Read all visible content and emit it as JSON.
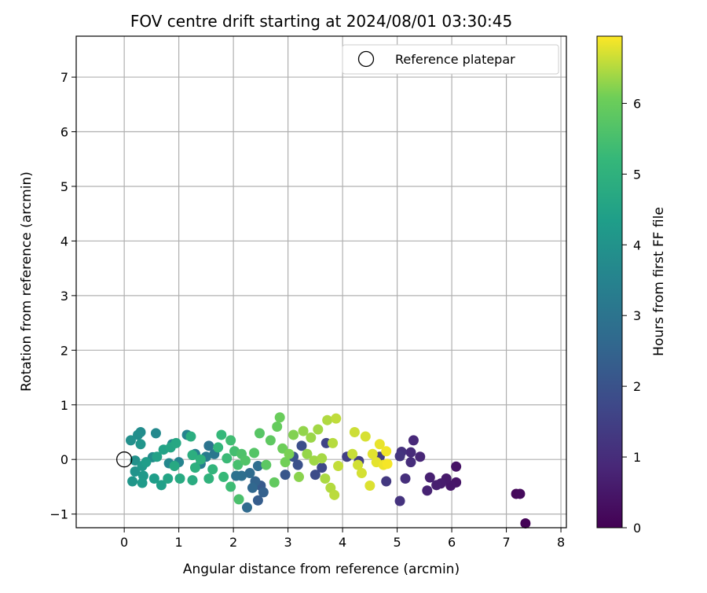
{
  "chart_data": {
    "type": "scatter",
    "title": "FOV centre drift starting at 2024/08/01 03:30:45",
    "xlabel": "Angular distance from reference (arcmin)",
    "ylabel": "Rotation from reference (arcmin)",
    "xlim": [
      -0.88,
      8.1
    ],
    "ylim": [
      -1.25,
      7.75
    ],
    "xticks": [
      0,
      1,
      2,
      3,
      4,
      5,
      6,
      7,
      8
    ],
    "yticks": [
      -1,
      0,
      1,
      2,
      3,
      4,
      5,
      6,
      7
    ],
    "grid": true,
    "legend": {
      "position": "top-right",
      "entries": [
        "Reference platepar"
      ]
    },
    "reference_point": {
      "x": 0,
      "y": 0,
      "label": "Reference platepar"
    },
    "colorbar": {
      "label": "Hours from first FF file",
      "colormap": "viridis",
      "range": [
        0,
        6.95
      ],
      "ticks": [
        0,
        1,
        2,
        3,
        4,
        5,
        6
      ]
    },
    "points": [
      {
        "x": 7.35,
        "y": -1.17,
        "t": 0.05
      },
      {
        "x": 7.18,
        "y": -0.63,
        "t": 0.15
      },
      {
        "x": 7.25,
        "y": -0.63,
        "t": 0.2
      },
      {
        "x": 6.08,
        "y": -0.13,
        "t": 0.4
      },
      {
        "x": 6.08,
        "y": -0.42,
        "t": 0.45
      },
      {
        "x": 5.98,
        "y": -0.48,
        "t": 0.5
      },
      {
        "x": 5.9,
        "y": -0.35,
        "t": 0.55
      },
      {
        "x": 5.8,
        "y": -0.44,
        "t": 0.6
      },
      {
        "x": 5.72,
        "y": -0.47,
        "t": 0.65
      },
      {
        "x": 5.6,
        "y": -0.33,
        "t": 0.7
      },
      {
        "x": 5.55,
        "y": -0.57,
        "t": 0.75
      },
      {
        "x": 5.42,
        "y": 0.05,
        "t": 0.85
      },
      {
        "x": 5.3,
        "y": 0.35,
        "t": 0.9
      },
      {
        "x": 5.25,
        "y": 0.13,
        "t": 0.95
      },
      {
        "x": 5.25,
        "y": -0.05,
        "t": 1.0
      },
      {
        "x": 5.15,
        "y": -0.35,
        "t": 1.05
      },
      {
        "x": 5.08,
        "y": 0.14,
        "t": 1.1
      },
      {
        "x": 5.05,
        "y": -0.76,
        "t": 1.15
      },
      {
        "x": 5.05,
        "y": 0.06,
        "t": 1.2
      },
      {
        "x": 4.8,
        "y": -0.4,
        "t": 1.3
      },
      {
        "x": 4.68,
        "y": 0.05,
        "t": 1.4
      },
      {
        "x": 4.3,
        "y": -0.03,
        "t": 1.45
      },
      {
        "x": 4.08,
        "y": 0.05,
        "t": 1.5
      },
      {
        "x": 3.7,
        "y": 0.3,
        "t": 1.6
      },
      {
        "x": 3.62,
        "y": -0.15,
        "t": 1.7
      },
      {
        "x": 3.5,
        "y": -0.28,
        "t": 1.8
      },
      {
        "x": 3.25,
        "y": 0.25,
        "t": 1.9
      },
      {
        "x": 3.18,
        "y": -0.1,
        "t": 1.95
      },
      {
        "x": 3.1,
        "y": 0.05,
        "t": 2.0
      },
      {
        "x": 2.95,
        "y": -0.28,
        "t": 2.1
      },
      {
        "x": 2.5,
        "y": -0.48,
        "t": 2.2
      },
      {
        "x": 2.45,
        "y": -0.75,
        "t": 2.3
      },
      {
        "x": 2.55,
        "y": -0.6,
        "t": 2.4
      },
      {
        "x": 2.4,
        "y": -0.4,
        "t": 2.5
      },
      {
        "x": 2.35,
        "y": -0.52,
        "t": 2.6
      },
      {
        "x": 2.25,
        "y": -0.88,
        "t": 2.7
      },
      {
        "x": 2.3,
        "y": -0.25,
        "t": 2.75
      },
      {
        "x": 2.45,
        "y": -0.12,
        "t": 2.8
      },
      {
        "x": 2.15,
        "y": -0.3,
        "t": 2.85
      },
      {
        "x": 2.05,
        "y": -0.3,
        "t": 2.9
      },
      {
        "x": 1.55,
        "y": 0.25,
        "t": 3.0
      },
      {
        "x": 1.65,
        "y": 0.1,
        "t": 3.1
      },
      {
        "x": 1.5,
        "y": 0.05,
        "t": 3.2
      },
      {
        "x": 1.4,
        "y": -0.08,
        "t": 3.3
      },
      {
        "x": 1.3,
        "y": 0.1,
        "t": 3.4
      },
      {
        "x": 1.15,
        "y": 0.45,
        "t": 3.5
      },
      {
        "x": 1.0,
        "y": -0.05,
        "t": 3.55
      },
      {
        "x": 0.88,
        "y": 0.28,
        "t": 3.6
      },
      {
        "x": 0.82,
        "y": -0.07,
        "t": 3.65
      },
      {
        "x": 0.58,
        "y": 0.48,
        "t": 3.7
      },
      {
        "x": 0.52,
        "y": 0.04,
        "t": 3.75
      },
      {
        "x": 0.3,
        "y": 0.5,
        "t": 3.8
      },
      {
        "x": 0.25,
        "y": 0.45,
        "t": 3.85
      },
      {
        "x": 0.12,
        "y": 0.35,
        "t": 3.9
      },
      {
        "x": 0.2,
        "y": -0.02,
        "t": 3.95
      },
      {
        "x": 0.2,
        "y": -0.22,
        "t": 4.0
      },
      {
        "x": 0.3,
        "y": 0.28,
        "t": 4.05
      },
      {
        "x": 0.15,
        "y": -0.4,
        "t": 4.1
      },
      {
        "x": 0.33,
        "y": -0.12,
        "t": 4.15
      },
      {
        "x": 0.35,
        "y": -0.3,
        "t": 4.2
      },
      {
        "x": 0.33,
        "y": -0.43,
        "t": 4.25
      },
      {
        "x": 0.4,
        "y": -0.05,
        "t": 4.3
      },
      {
        "x": 0.55,
        "y": -0.35,
        "t": 4.35
      },
      {
        "x": 0.68,
        "y": -0.47,
        "t": 4.4
      },
      {
        "x": 0.6,
        "y": 0.05,
        "t": 4.45
      },
      {
        "x": 0.72,
        "y": 0.18,
        "t": 4.5
      },
      {
        "x": 0.8,
        "y": -0.35,
        "t": 4.55
      },
      {
        "x": 0.85,
        "y": 0.22,
        "t": 4.6
      },
      {
        "x": 0.95,
        "y": 0.3,
        "t": 4.65
      },
      {
        "x": 0.92,
        "y": -0.12,
        "t": 4.7
      },
      {
        "x": 1.02,
        "y": -0.35,
        "t": 4.75
      },
      {
        "x": 1.25,
        "y": -0.38,
        "t": 4.8
      },
      {
        "x": 1.22,
        "y": 0.42,
        "t": 4.85
      },
      {
        "x": 1.25,
        "y": 0.08,
        "t": 4.9
      },
      {
        "x": 1.3,
        "y": -0.15,
        "t": 4.95
      },
      {
        "x": 1.4,
        "y": 0.0,
        "t": 5.0
      },
      {
        "x": 1.55,
        "y": -0.35,
        "t": 5.05
      },
      {
        "x": 1.62,
        "y": -0.18,
        "t": 5.1
      },
      {
        "x": 1.72,
        "y": 0.22,
        "t": 5.15
      },
      {
        "x": 1.78,
        "y": 0.45,
        "t": 5.2
      },
      {
        "x": 1.82,
        "y": -0.32,
        "t": 5.25
      },
      {
        "x": 1.88,
        "y": 0.02,
        "t": 5.3
      },
      {
        "x": 1.95,
        "y": -0.5,
        "t": 5.35
      },
      {
        "x": 1.95,
        "y": 0.35,
        "t": 5.4
      },
      {
        "x": 2.02,
        "y": 0.15,
        "t": 5.45
      },
      {
        "x": 2.08,
        "y": -0.1,
        "t": 5.5
      },
      {
        "x": 2.1,
        "y": -0.73,
        "t": 5.55
      },
      {
        "x": 2.15,
        "y": 0.1,
        "t": 5.6
      },
      {
        "x": 2.22,
        "y": -0.02,
        "t": 5.65
      },
      {
        "x": 2.38,
        "y": 0.12,
        "t": 5.7
      },
      {
        "x": 2.48,
        "y": 0.48,
        "t": 5.75
      },
      {
        "x": 2.6,
        "y": -0.1,
        "t": 5.8
      },
      {
        "x": 2.68,
        "y": 0.35,
        "t": 5.85
      },
      {
        "x": 2.75,
        "y": -0.42,
        "t": 5.9
      },
      {
        "x": 2.8,
        "y": 0.6,
        "t": 5.95
      },
      {
        "x": 2.85,
        "y": 0.77,
        "t": 6.0
      },
      {
        "x": 2.9,
        "y": 0.2,
        "t": 6.05
      },
      {
        "x": 2.95,
        "y": -0.05,
        "t": 6.1
      },
      {
        "x": 3.02,
        "y": 0.1,
        "t": 6.15
      },
      {
        "x": 3.1,
        "y": 0.45,
        "t": 6.2
      },
      {
        "x": 3.2,
        "y": -0.32,
        "t": 6.25
      },
      {
        "x": 3.28,
        "y": 0.52,
        "t": 6.3
      },
      {
        "x": 3.35,
        "y": 0.1,
        "t": 6.32
      },
      {
        "x": 3.42,
        "y": 0.4,
        "t": 6.35
      },
      {
        "x": 3.48,
        "y": -0.02,
        "t": 6.38
      },
      {
        "x": 3.55,
        "y": 0.55,
        "t": 6.4
      },
      {
        "x": 3.62,
        "y": 0.02,
        "t": 6.42
      },
      {
        "x": 3.68,
        "y": -0.35,
        "t": 6.45
      },
      {
        "x": 3.72,
        "y": 0.72,
        "t": 6.48
      },
      {
        "x": 3.78,
        "y": -0.52,
        "t": 6.5
      },
      {
        "x": 3.82,
        "y": 0.3,
        "t": 6.52
      },
      {
        "x": 3.85,
        "y": -0.65,
        "t": 6.55
      },
      {
        "x": 3.88,
        "y": 0.75,
        "t": 6.58
      },
      {
        "x": 3.92,
        "y": -0.12,
        "t": 6.6
      },
      {
        "x": 4.18,
        "y": 0.1,
        "t": 6.62
      },
      {
        "x": 4.22,
        "y": 0.5,
        "t": 6.65
      },
      {
        "x": 4.28,
        "y": -0.1,
        "t": 6.68
      },
      {
        "x": 4.35,
        "y": -0.25,
        "t": 6.7
      },
      {
        "x": 4.42,
        "y": 0.42,
        "t": 6.72
      },
      {
        "x": 4.5,
        "y": -0.48,
        "t": 6.75
      },
      {
        "x": 4.55,
        "y": 0.1,
        "t": 6.78
      },
      {
        "x": 4.62,
        "y": -0.05,
        "t": 6.8
      },
      {
        "x": 4.68,
        "y": 0.28,
        "t": 6.82
      },
      {
        "x": 4.75,
        "y": -0.1,
        "t": 6.85
      },
      {
        "x": 4.8,
        "y": 0.15,
        "t": 6.88
      },
      {
        "x": 4.82,
        "y": -0.08,
        "t": 6.9
      }
    ]
  }
}
